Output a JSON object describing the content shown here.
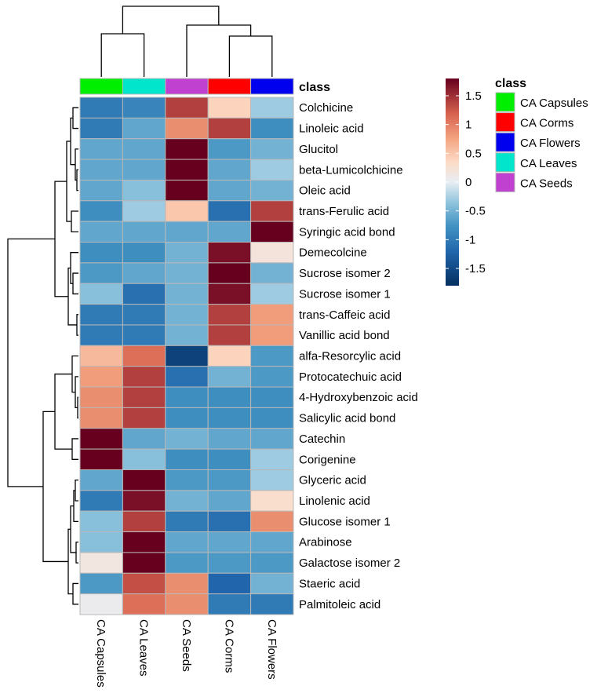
{
  "chart_data": {
    "type": "heatmap",
    "columns": [
      "CA Capsules",
      "CA Leaves",
      "CA Seeds",
      "CA Corms",
      "CA Flowers"
    ],
    "rows": [
      "Colchicine",
      "Linoleic acid",
      "Glucitol",
      "beta-Lumicolchicine",
      "Oleic acid",
      "trans-Ferulic acid",
      "Syringic acid bond",
      "Demecolcine",
      "Sucrose isomer 2",
      "Sucrose isomer 1",
      "trans-Caffeic acid",
      "Vanillic acid bond",
      "alfa-Resorcylic acid",
      "Protocatechuic acid",
      "4-Hydroxybenzoic acid",
      "Salicylic acid bond",
      "Catechin",
      "Corigenine",
      "Glyceric acid",
      "Linolenic acid",
      "Glucose isomer 1",
      "Arabinose",
      "Galactose isomer 2",
      "Staeric acid",
      "Palmitoleic acid"
    ],
    "values": [
      [
        -1.0,
        -0.9,
        1.4,
        0.4,
        -0.3
      ],
      [
        -1.0,
        -0.6,
        0.9,
        1.4,
        -0.8
      ],
      [
        -0.6,
        -0.6,
        1.8,
        -0.7,
        -0.5
      ],
      [
        -0.6,
        -0.6,
        1.8,
        -0.6,
        -0.3
      ],
      [
        -0.6,
        -0.4,
        1.8,
        -0.6,
        -0.5
      ],
      [
        -0.8,
        -0.3,
        0.5,
        -1.1,
        1.4
      ],
      [
        -0.6,
        -0.6,
        -0.6,
        -0.6,
        1.8
      ],
      [
        -0.8,
        -0.8,
        -0.5,
        1.7,
        0.2
      ],
      [
        -0.7,
        -0.6,
        -0.5,
        1.8,
        -0.5
      ],
      [
        -0.4,
        -1.1,
        -0.5,
        1.7,
        -0.3
      ],
      [
        -1.0,
        -1.0,
        -0.5,
        1.4,
        0.8
      ],
      [
        -1.0,
        -1.0,
        -0.5,
        1.4,
        0.8
      ],
      [
        0.6,
        1.1,
        -1.6,
        0.4,
        -0.7
      ],
      [
        0.8,
        1.4,
        -1.1,
        -0.5,
        -0.7
      ],
      [
        0.9,
        1.4,
        -0.8,
        -0.8,
        -0.8
      ],
      [
        0.9,
        1.4,
        -0.8,
        -0.8,
        -0.8
      ],
      [
        1.8,
        -0.6,
        -0.5,
        -0.6,
        -0.6
      ],
      [
        1.8,
        -0.4,
        -0.8,
        -0.8,
        -0.3
      ],
      [
        -0.6,
        1.8,
        -0.7,
        -0.7,
        -0.3
      ],
      [
        -1.0,
        1.7,
        -0.5,
        -0.6,
        0.3
      ],
      [
        -0.4,
        1.4,
        -1.0,
        -1.1,
        0.9
      ],
      [
        -0.4,
        1.8,
        -0.6,
        -0.6,
        -0.6
      ],
      [
        0.15,
        1.8,
        -0.7,
        -0.7,
        -0.7
      ],
      [
        -0.7,
        1.3,
        0.9,
        -1.2,
        -0.5
      ],
      [
        0.05,
        1.1,
        0.9,
        -1.0,
        -1.0
      ]
    ],
    "color_scale": {
      "ticks": [
        1.5,
        1,
        0.5,
        0,
        -0.5,
        -1,
        -1.5
      ],
      "range": [
        -1.8,
        1.8
      ],
      "stops": [
        {
          "v": -1.8,
          "color": "#053061"
        },
        {
          "v": -1.2,
          "color": "#2166ac"
        },
        {
          "v": -0.75,
          "color": "#4393c3"
        },
        {
          "v": -0.35,
          "color": "#92c5de"
        },
        {
          "v": 0.0,
          "color": "#e8eef3"
        },
        {
          "v": 0.35,
          "color": "#fddbc7"
        },
        {
          "v": 0.75,
          "color": "#f4a582"
        },
        {
          "v": 1.2,
          "color": "#d6604d"
        },
        {
          "v": 1.8,
          "color": "#67001f"
        }
      ]
    },
    "class_annotation": {
      "label": "class",
      "values": [
        "CA Capsules",
        "CA Leaves",
        "CA Seeds",
        "CA Corms",
        "CA Flowers"
      ]
    },
    "legend": {
      "title": "class",
      "entries": [
        {
          "label": "CA Capsules",
          "color": "#00ee00"
        },
        {
          "label": "CA Corms",
          "color": "#ff0000"
        },
        {
          "label": "CA Flowers",
          "color": "#0000ee"
        },
        {
          "label": "CA Leaves",
          "color": "#00e5cc"
        },
        {
          "label": "CA Seeds",
          "color": "#c040d0"
        }
      ]
    }
  }
}
